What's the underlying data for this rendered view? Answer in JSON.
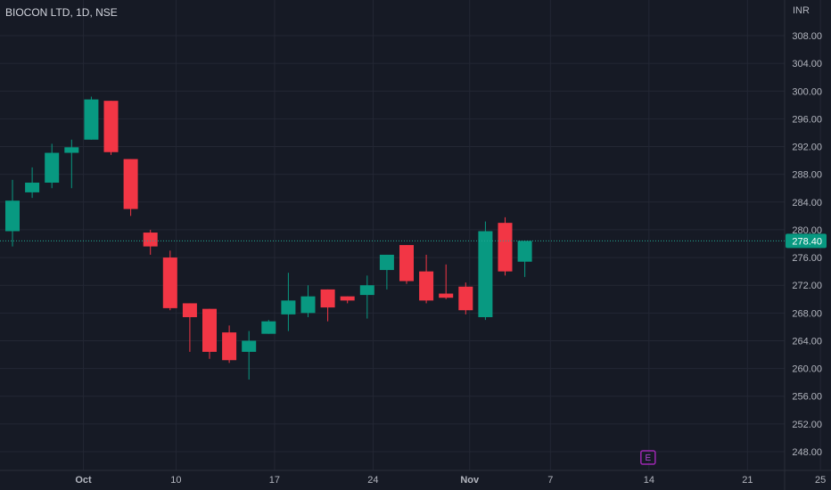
{
  "title": "BIOCON LTD, 1D, NSE",
  "currency": "INR",
  "colors": {
    "background": "#161a25",
    "grid": "#232734",
    "up": "#089981",
    "down": "#f23645",
    "text": "#b2b5be",
    "price_line": "#22ab94",
    "event": "#9c27b0"
  },
  "event_marker": {
    "label": "E",
    "date": "Nov 14"
  },
  "chart_data": {
    "type": "candlestick",
    "ylim": [
      245,
      310
    ],
    "y_ticks": [
      "308.00",
      "304.00",
      "300.00",
      "296.00",
      "292.00",
      "288.00",
      "284.00",
      "280.00",
      "276.00",
      "272.00",
      "268.00",
      "264.00",
      "260.00",
      "256.00",
      "252.00",
      "248.00"
    ],
    "x_ticks": [
      {
        "label": "Oct",
        "index": 3.6,
        "bold": true
      },
      {
        "label": "10",
        "index": 8.3,
        "bold": false
      },
      {
        "label": "17",
        "index": 13.3,
        "bold": false
      },
      {
        "label": "24",
        "index": 18.3,
        "bold": false
      },
      {
        "label": "Nov",
        "index": 23.2,
        "bold": true
      },
      {
        "label": "7",
        "index": 27.3,
        "bold": false
      },
      {
        "label": "14",
        "index": 32.3,
        "bold": false
      },
      {
        "label": "21",
        "index": 37.3,
        "bold": false
      },
      {
        "label": "25",
        "index": 41.0,
        "bold": false
      }
    ],
    "last_price": "278.40",
    "candles": [
      {
        "o": 279.8,
        "h": 287.2,
        "l": 277.6,
        "c": 284.2
      },
      {
        "o": 285.4,
        "h": 289.0,
        "l": 284.6,
        "c": 286.8
      },
      {
        "o": 286.8,
        "h": 292.4,
        "l": 286.0,
        "c": 291.1
      },
      {
        "o": 291.1,
        "h": 293.0,
        "l": 286.0,
        "c": 291.9
      },
      {
        "o": 293.0,
        "h": 299.2,
        "l": 293.0,
        "c": 298.8
      },
      {
        "o": 298.6,
        "h": 298.6,
        "l": 290.8,
        "c": 291.2
      },
      {
        "o": 290.2,
        "h": 290.2,
        "l": 282.0,
        "c": 283.0
      },
      {
        "o": 279.6,
        "h": 280.0,
        "l": 276.4,
        "c": 277.6
      },
      {
        "o": 276.0,
        "h": 277.0,
        "l": 268.4,
        "c": 268.7
      },
      {
        "o": 269.4,
        "h": 269.4,
        "l": 262.4,
        "c": 267.4
      },
      {
        "o": 268.6,
        "h": 268.6,
        "l": 261.4,
        "c": 262.4
      },
      {
        "o": 265.2,
        "h": 266.2,
        "l": 260.8,
        "c": 261.2
      },
      {
        "o": 262.4,
        "h": 265.4,
        "l": 258.4,
        "c": 264.0
      },
      {
        "o": 265.0,
        "h": 267.0,
        "l": 265.0,
        "c": 266.8
      },
      {
        "o": 267.8,
        "h": 273.8,
        "l": 265.4,
        "c": 269.8
      },
      {
        "o": 268.0,
        "h": 272.0,
        "l": 267.4,
        "c": 270.4
      },
      {
        "o": 271.4,
        "h": 271.4,
        "l": 266.8,
        "c": 268.8
      },
      {
        "o": 270.4,
        "h": 270.4,
        "l": 269.4,
        "c": 269.8
      },
      {
        "o": 270.6,
        "h": 273.4,
        "l": 267.2,
        "c": 272.0
      },
      {
        "o": 274.2,
        "h": 276.4,
        "l": 271.4,
        "c": 276.4
      },
      {
        "o": 277.8,
        "h": 277.8,
        "l": 272.2,
        "c": 272.6
      },
      {
        "o": 274.0,
        "h": 276.4,
        "l": 269.4,
        "c": 269.8
      },
      {
        "o": 270.8,
        "h": 275.0,
        "l": 270.0,
        "c": 270.2
      },
      {
        "o": 271.8,
        "h": 272.4,
        "l": 267.8,
        "c": 268.4
      },
      {
        "o": 267.4,
        "h": 281.2,
        "l": 267.0,
        "c": 279.8
      },
      {
        "o": 281.0,
        "h": 281.8,
        "l": 273.4,
        "c": 274.0
      },
      {
        "o": 275.4,
        "h": 278.4,
        "l": 273.2,
        "c": 278.4
      }
    ]
  }
}
